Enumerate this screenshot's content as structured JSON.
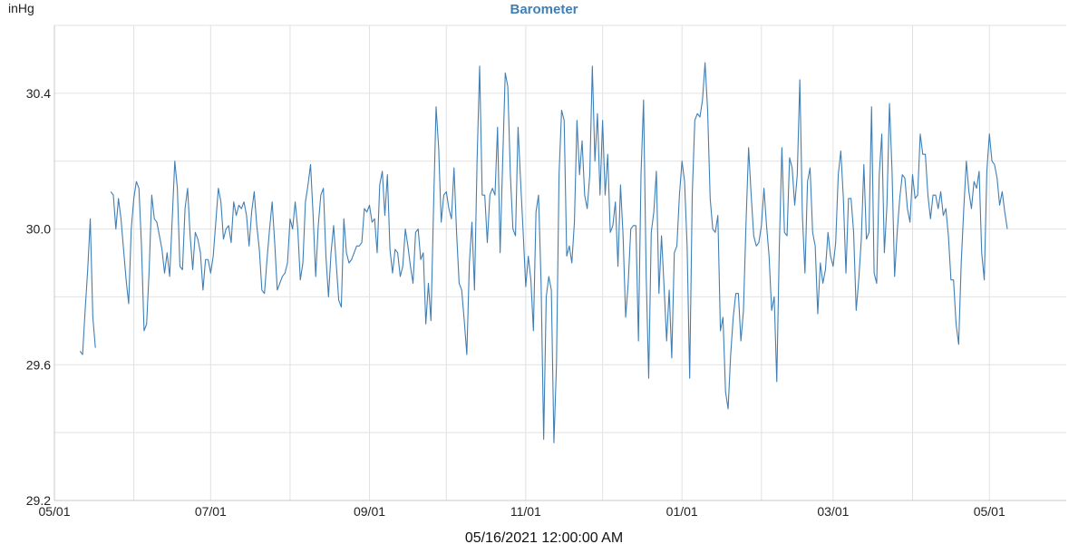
{
  "chart_data": {
    "type": "line",
    "title": "Barometer",
    "ylabel": "inHg",
    "xlabel": "05/16/2021 12:00:00 AM",
    "x_start": "2021-05-01",
    "x_end": "2022-05-31",
    "ylim": [
      29.2,
      30.6
    ],
    "y_ticks": [
      29.2,
      29.6,
      30.0,
      30.4
    ],
    "x_ticks": [
      {
        "date": "2021-05-01",
        "label": "05/01"
      },
      {
        "date": "2021-07-01",
        "label": "07/01"
      },
      {
        "date": "2021-09-01",
        "label": "09/01"
      },
      {
        "date": "2021-11-01",
        "label": "11/01"
      },
      {
        "date": "2022-01-01",
        "label": "01/01"
      },
      {
        "date": "2022-03-01",
        "label": "03/01"
      },
      {
        "date": "2022-05-01",
        "label": "05/01"
      }
    ],
    "grid": true,
    "series": [
      {
        "color": "#3f7fb5",
        "segments": [
          {
            "start": "2021-05-11",
            "values": [
              29.64,
              29.63,
              29.76,
              29.88,
              30.03,
              29.74,
              29.65
            ]
          },
          {
            "start": "2021-05-23",
            "values": [
              30.11,
              30.1,
              30.0,
              30.09,
              30.03,
              29.94,
              29.85,
              29.78,
              30.0,
              30.09,
              30.14,
              30.12,
              29.95,
              29.7,
              29.72,
              29.88,
              30.1,
              30.03,
              30.02,
              29.98,
              29.94,
              29.87,
              29.93,
              29.86,
              30.03,
              30.2,
              30.12,
              29.89,
              29.88,
              30.06,
              30.12,
              29.98,
              29.88,
              29.99,
              29.97,
              29.93,
              29.82,
              29.91,
              29.91,
              29.87,
              29.92,
              30.02,
              30.12,
              30.08,
              29.97,
              30.0,
              30.01,
              29.96,
              30.08,
              30.04,
              30.07,
              30.06,
              30.08,
              30.04,
              29.95,
              30.05,
              30.11,
              30.01,
              29.94,
              29.82,
              29.81,
              29.91,
              30.0,
              30.08,
              29.96,
              29.82,
              29.84,
              29.86,
              29.87,
              29.9,
              30.03,
              30.0,
              30.08,
              30.0,
              29.85,
              29.9,
              30.08,
              30.13,
              30.19,
              30.04,
              29.86,
              30.01,
              30.1,
              30.12,
              29.92,
              29.8,
              29.93,
              30.01,
              29.9,
              29.79,
              29.77,
              30.03,
              29.93,
              29.9,
              29.91,
              29.93,
              29.95,
              29.95,
              29.96,
              30.06,
              30.05,
              30.07,
              30.02,
              30.03,
              29.93,
              30.13,
              30.17,
              30.04,
              30.16,
              29.94,
              29.87,
              29.94,
              29.93,
              29.86,
              29.89,
              30.0,
              29.95,
              29.89,
              29.84,
              29.99,
              30.0,
              29.91,
              29.93,
              29.72,
              29.84,
              29.73,
              30.06,
              30.36,
              30.24,
              30.02,
              30.1,
              30.11,
              30.06,
              30.03,
              30.18,
              29.99,
              29.84,
              29.82,
              29.73,
              29.63,
              29.9,
              30.02,
              29.82,
              30.2,
              30.48,
              30.1,
              30.1,
              29.96,
              30.1,
              30.12,
              30.1,
              30.3,
              29.93,
              30.2,
              30.46,
              30.42,
              30.16,
              30.0,
              29.98,
              30.3,
              30.14,
              29.99,
              29.83,
              29.92,
              29.85,
              29.7,
              30.05,
              30.1,
              29.84,
              29.38,
              29.8,
              29.86,
              29.82,
              29.37,
              29.6,
              30.16,
              30.35,
              30.32,
              29.92,
              29.95,
              29.9,
              30.02,
              30.32,
              30.16,
              30.26,
              30.1,
              30.06,
              30.16,
              30.48,
              30.2,
              30.34,
              30.1,
              30.32,
              30.1,
              30.22,
              29.99,
              30.01,
              30.08,
              29.89,
              30.13,
              29.98,
              29.74,
              29.84,
              30.0,
              30.01,
              30.01,
              29.67,
              30.16,
              30.38,
              29.87,
              29.56,
              29.99,
              30.05,
              30.17,
              29.81,
              29.98,
              29.83,
              29.67,
              29.82,
              29.62,
              29.93,
              29.95,
              30.1,
              30.2,
              30.14,
              29.95,
              29.56,
              30.1,
              30.32,
              30.34,
              30.33,
              30.38,
              30.49,
              30.35,
              30.09,
              30.0,
              29.99,
              30.04,
              29.7,
              29.74,
              29.52,
              29.47,
              29.63,
              29.74,
              29.81,
              29.81,
              29.67,
              29.76,
              30.02,
              30.24,
              30.1,
              29.98,
              29.95,
              29.96,
              30.01,
              30.12,
              30.01,
              29.92,
              29.76,
              29.8,
              29.55,
              29.95,
              30.24,
              29.99,
              29.98,
              30.21,
              30.18,
              30.07,
              30.16,
              30.44,
              30.04,
              29.87,
              30.14,
              30.18,
              29.99,
              29.95,
              29.75,
              29.9,
              29.84,
              29.88,
              29.99,
              29.92,
              29.89,
              29.96,
              30.16,
              30.23,
              30.09,
              29.87,
              30.09,
              30.09,
              29.99,
              29.76,
              29.85,
              29.97,
              30.19,
              29.97,
              29.99,
              30.36,
              29.87,
              29.84,
              30.16,
              30.28,
              29.93,
              30.07,
              30.37,
              30.17,
              29.86,
              29.99,
              30.09,
              30.16,
              30.15,
              30.06,
              30.02,
              30.16,
              30.09,
              30.1,
              30.28,
              30.22,
              30.22,
              30.1,
              30.03,
              30.1,
              30.1,
              30.06,
              30.11,
              30.04,
              30.06,
              29.98,
              29.85,
              29.85,
              29.72,
              29.66,
              29.9,
              30.06,
              30.2,
              30.11,
              30.06,
              30.14,
              30.12,
              30.17,
              29.93,
              29.85,
              30.17,
              30.28,
              30.2,
              30.19,
              30.15,
              30.07,
              30.11,
              30.05,
              30.0
            ]
          }
        ]
      }
    ]
  }
}
